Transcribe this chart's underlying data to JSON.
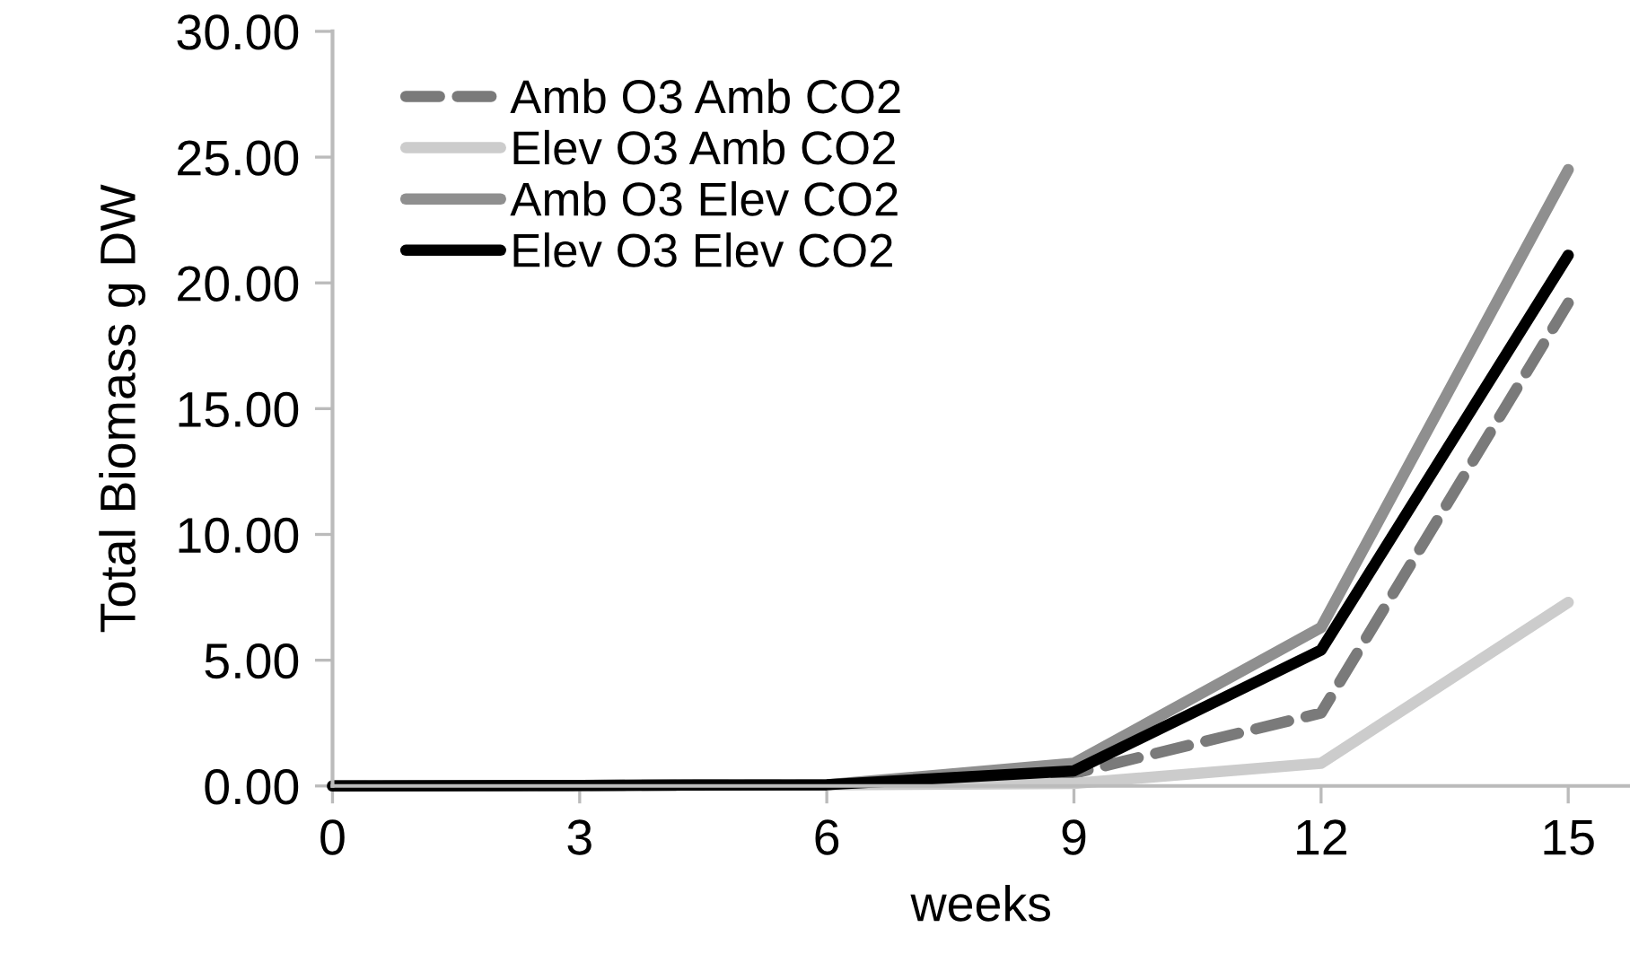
{
  "chart_data": {
    "type": "line",
    "xlabel": "weeks",
    "ylabel": "Total Biomass g DW",
    "x": [
      0,
      3,
      6,
      9,
      12,
      15
    ],
    "series": [
      {
        "name": "Amb O3 Amb CO2",
        "color": "#7a7a7a",
        "line_style": "dashed",
        "values": [
          0.0,
          0.02,
          0.05,
          0.5,
          2.9,
          19.2
        ]
      },
      {
        "name": "Elev O3 Amb CO2",
        "color": "#cccccc",
        "line_style": "solid",
        "values": [
          0.0,
          0.02,
          0.05,
          0.1,
          0.9,
          7.3
        ]
      },
      {
        "name": "Amb O3 Elev CO2",
        "color": "#8f8f8f",
        "line_style": "solid",
        "values": [
          0.0,
          0.02,
          0.05,
          0.9,
          6.3,
          24.5
        ]
      },
      {
        "name": "Elev O3 Elev CO2",
        "color": "#000000",
        "line_style": "solid",
        "values": [
          0.0,
          0.02,
          0.05,
          0.6,
          5.4,
          21.1
        ]
      }
    ],
    "xlim": [
      0,
      15.75
    ],
    "xticks": [
      0,
      3,
      6,
      9,
      12,
      15
    ],
    "ylim": [
      0,
      30
    ],
    "yticks": [
      {
        "value": 0,
        "label": "0.00"
      },
      {
        "value": 5,
        "label": "5.00"
      },
      {
        "value": 10,
        "label": "10.00"
      },
      {
        "value": 15,
        "label": "15.00"
      },
      {
        "value": 20,
        "label": "20.00"
      },
      {
        "value": 25,
        "label": "25.00"
      },
      {
        "value": 30,
        "label": "30.00"
      }
    ],
    "grid": false,
    "legend": "top left",
    "marker": "none"
  }
}
